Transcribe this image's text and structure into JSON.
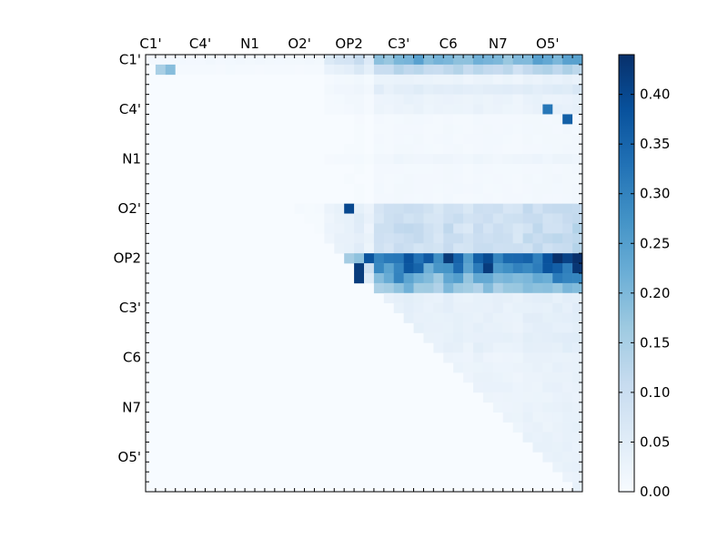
{
  "chart_data": {
    "type": "heatmap",
    "size": 44,
    "row_tick_labels": [
      "C1'",
      "C4'",
      "N1",
      "O2'",
      "OP2",
      "C3'",
      "C6",
      "N7",
      "O5'"
    ],
    "col_tick_labels": [
      "C1'",
      "C4'",
      "N1",
      "O2'",
      "OP2",
      "C3'",
      "C6",
      "N7",
      "O5'"
    ],
    "tick_positions": [
      0,
      5,
      10,
      15,
      20,
      25,
      30,
      35,
      40
    ],
    "colorbar": {
      "vmin": 0.0,
      "vmax": 0.44,
      "tick_values": [
        0.0,
        0.05,
        0.1,
        0.15,
        0.2,
        0.25,
        0.3,
        0.35,
        0.4
      ],
      "tick_labels": [
        "0.00",
        "0.05",
        "0.10",
        "0.15",
        "0.20",
        "0.25",
        "0.30",
        "0.35",
        "0.40"
      ],
      "colormap": "Blues"
    },
    "upper_triangle_only": true,
    "row_profile": [
      0.22,
      0.13,
      0.03,
      0.05,
      0.03,
      0.03,
      0.01,
      0.01,
      0.01,
      0.01,
      0.02,
      0.01,
      0.01,
      0.01,
      0.01,
      0.1,
      0.1,
      0.1,
      0.1,
      0.1,
      0.38,
      0.33,
      0.25,
      0.18,
      0.04,
      0.04,
      0.04,
      0.04,
      0.04,
      0.04,
      0.03,
      0.03,
      0.03,
      0.03,
      0.03,
      0.03,
      0.03,
      0.03,
      0.03,
      0.03,
      0.03,
      0.03,
      0.03,
      0.03
    ],
    "col_profile": [
      0.05,
      0.05,
      0.05,
      0.05,
      0.05,
      0.05,
      0.05,
      0.05,
      0.05,
      0.05,
      0.05,
      0.05,
      0.05,
      0.05,
      0.05,
      0.05,
      0.05,
      0.05,
      0.24,
      0.3,
      0.4,
      0.45,
      0.28,
      0.85,
      0.8,
      1.0,
      1.0,
      0.95,
      0.82,
      0.8,
      1.0,
      0.88,
      0.75,
      0.95,
      0.9,
      0.86,
      0.85,
      0.8,
      1.0,
      1.0,
      1.0,
      1.05,
      1.1,
      1.15
    ],
    "highlights": [
      {
        "row": 1,
        "col": 1,
        "value": 0.15
      },
      {
        "row": 1,
        "col": 2,
        "value": 0.19
      },
      {
        "row": 21,
        "col": 21,
        "value": 0.42
      },
      {
        "row": 20,
        "col": 22,
        "value": 0.38
      },
      {
        "row": 21,
        "col": 34,
        "value": 0.42
      },
      {
        "row": 20,
        "col": 42,
        "value": 0.41
      },
      {
        "row": 21,
        "col": 43,
        "value": 0.43
      },
      {
        "row": 22,
        "col": 21,
        "value": 0.42
      },
      {
        "row": 15,
        "col": 20,
        "value": 0.4
      },
      {
        "row": 5,
        "col": 40,
        "value": 0.32
      },
      {
        "row": 6,
        "col": 42,
        "value": 0.36
      }
    ]
  }
}
